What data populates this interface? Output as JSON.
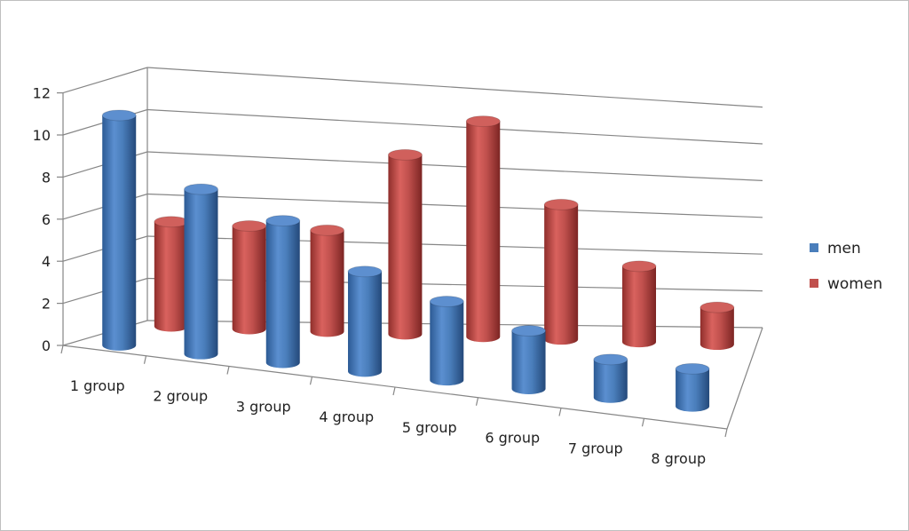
{
  "chart_data": {
    "type": "bar",
    "style": "3d-cylinder",
    "title": "",
    "xlabel": "",
    "ylabel": "",
    "categories": [
      "1 group",
      "2 group",
      "3 group",
      "4 group",
      "5 group",
      "6 group",
      "7 group",
      "8  group"
    ],
    "series": [
      {
        "name": "men",
        "color": "#4a7ebb",
        "values": [
          11,
          8,
          7,
          5,
          4,
          3,
          2,
          2
        ]
      },
      {
        "name": "women",
        "color": "#c0504d",
        "values": [
          5,
          5,
          5,
          9,
          11,
          7,
          4,
          2
        ]
      }
    ],
    "ylim": [
      0,
      12
    ],
    "yticks": [
      "0",
      "2",
      "4",
      "6",
      "8",
      "10",
      "12"
    ],
    "grid": true,
    "legend": "right"
  }
}
